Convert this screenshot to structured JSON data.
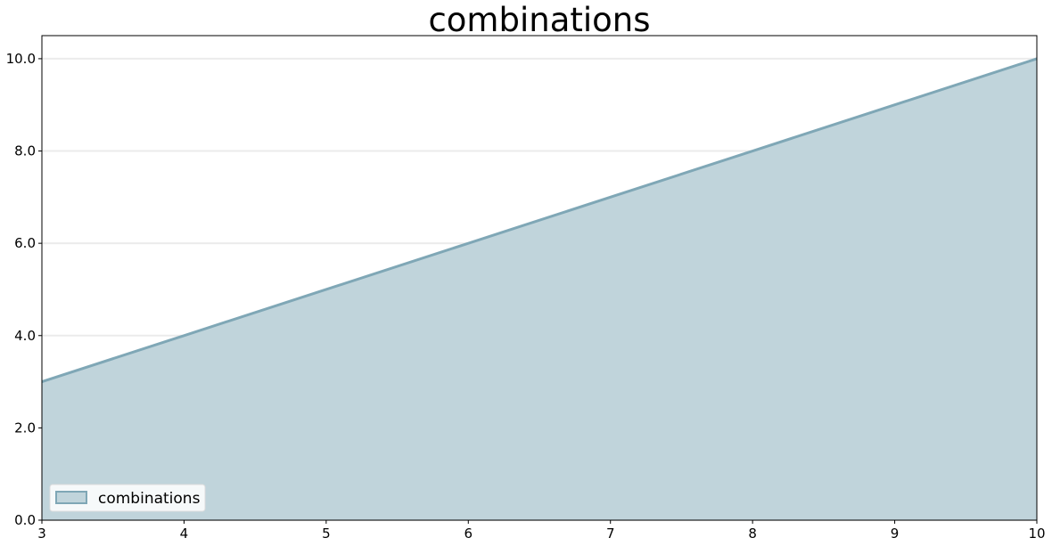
{
  "chart_data": {
    "type": "area",
    "title": "combinations",
    "xlabel": "",
    "ylabel": "",
    "x": [
      3,
      4,
      5,
      6,
      7,
      8,
      9,
      10
    ],
    "series": [
      {
        "name": "combinations",
        "values": [
          3,
          4,
          5,
          6,
          7,
          8,
          9,
          10
        ]
      }
    ],
    "xlim": [
      3,
      10
    ],
    "ylim": [
      0,
      10.5
    ],
    "x_ticks": [
      3,
      4,
      5,
      6,
      7,
      8,
      9,
      10
    ],
    "x_tick_labels": [
      "3",
      "4",
      "5",
      "6",
      "7",
      "8",
      "9",
      "10"
    ],
    "y_ticks": [
      0,
      2,
      4,
      6,
      8,
      10
    ],
    "y_tick_labels": [
      "0.0",
      "2.0",
      "4.0",
      "6.0",
      "8.0",
      "10.0"
    ],
    "grid": "horizontal",
    "legend": "bottom-left",
    "colors": {
      "fill": "#c0d4db",
      "line": "#7fa7b6",
      "grid": "#ebebeb",
      "axis": "#000000"
    }
  }
}
